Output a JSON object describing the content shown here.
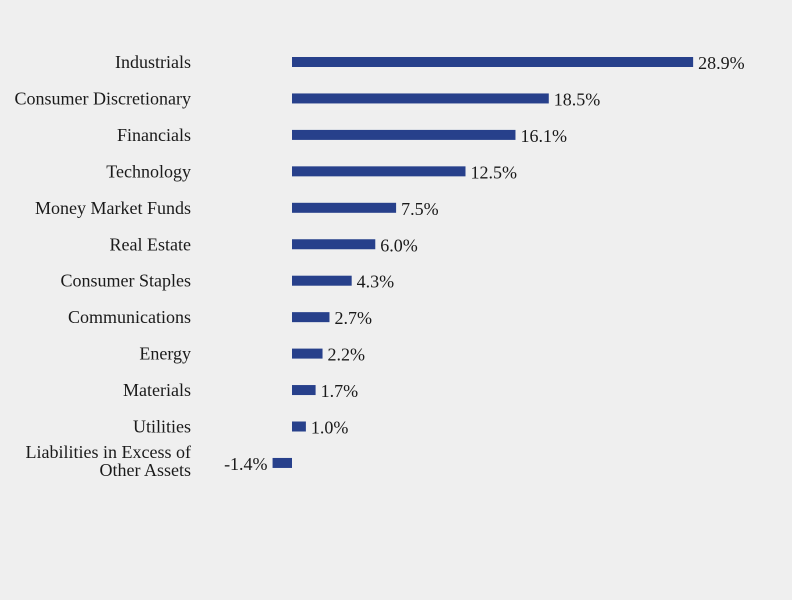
{
  "chart_data": {
    "type": "bar",
    "orientation": "horizontal",
    "categories": [
      "Industrials",
      "Consumer Discretionary",
      "Financials",
      "Technology",
      "Money Market Funds",
      "Real Estate",
      "Consumer Staples",
      "Communications",
      "Energy",
      "Materials",
      "Utilities",
      "Liabilities in Excess of Other Assets"
    ],
    "values": [
      28.9,
      18.5,
      16.1,
      12.5,
      7.5,
      6.0,
      4.3,
      2.7,
      2.2,
      1.7,
      1.0,
      -1.4
    ],
    "value_labels": [
      "28.9%",
      "18.5%",
      "16.1%",
      "12.5%",
      "7.5%",
      "6.0%",
      "4.3%",
      "2.7%",
      "2.2%",
      "1.7%",
      "1.0%",
      "-1.4%"
    ],
    "bar_color": "#27408b",
    "grid": false,
    "title": "",
    "xlabel": "",
    "ylabel": ""
  }
}
